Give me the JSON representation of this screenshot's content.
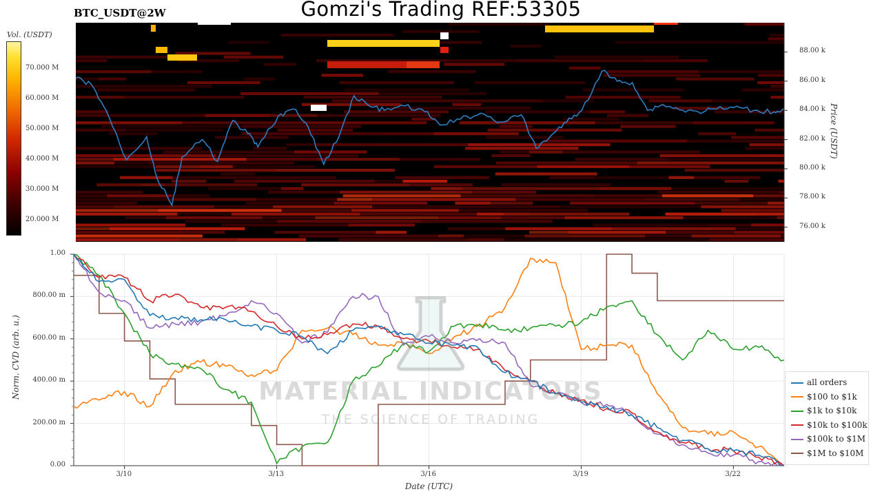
{
  "title": "Gomzi's Trading REF:53305",
  "pair_label": "BTC_USDT@2W",
  "watermark": {
    "name": "MATERIAL INDICATORS",
    "tagline": "THE SCIENCE OF TRADING"
  },
  "colors": {
    "price_line": "#2f7ec1",
    "background": "#000000",
    "all_orders": "#1f77b4",
    "s100_1k": "#ff7f0e",
    "s1k_10k": "#2ca02c",
    "s10k_100k": "#d62728",
    "s100k_1m": "#9467bd",
    "s1m_10m": "#8c564b"
  },
  "chart_data": [
    {
      "type": "heatmap",
      "title": "BTC_USDT@2W",
      "ylabel": "Price (USDT)",
      "yticks": [
        "76.00 k",
        "78.00 k",
        "80.00 k",
        "82.00 k",
        "84.00 k",
        "86.00 k",
        "88.00 k"
      ],
      "ylim": [
        75000,
        90000
      ],
      "colorbar_label": "Vol. (USDT)",
      "colorbar_ticks": [
        "20.000 M",
        "30.000 M",
        "40.000 M",
        "50.000 M",
        "60.000 M",
        "70.000 M"
      ],
      "price_series": {
        "name": "price",
        "x_days": [
          0,
          0.3,
          0.6,
          1.0,
          1.4,
          1.6,
          1.9,
          2.1,
          2.5,
          2.8,
          3.1,
          3.4,
          3.6,
          4.0,
          4.3,
          4.6,
          4.9,
          5.2,
          5.5,
          5.8,
          6.1,
          6.5,
          6.9,
          7.2,
          7.6,
          8.0,
          8.4,
          8.8,
          9.1,
          9.4,
          9.7,
          10.0,
          10.4,
          10.7,
          11.0,
          11.3,
          11.6,
          12.0,
          12.3,
          12.6,
          13.0,
          13.4,
          13.8,
          14.0
        ],
        "y": [
          86200,
          85800,
          84000,
          80600,
          82200,
          79400,
          77500,
          80800,
          82000,
          80500,
          83300,
          82400,
          81500,
          83600,
          84100,
          82800,
          80300,
          82200,
          85000,
          84300,
          84000,
          84300,
          83900,
          83000,
          83400,
          83800,
          83200,
          83700,
          81400,
          82300,
          83200,
          84000,
          86700,
          86000,
          85900,
          84000,
          84400,
          84000,
          83900,
          84100,
          84200,
          84000,
          83900,
          84100
        ]
      }
    },
    {
      "type": "line",
      "xlabel": "Date (UTC)",
      "ylabel": "Norm. CVD (arb. u.)",
      "ylim": [
        0,
        1
      ],
      "yticks": [
        "0.00",
        "200.00 m",
        "400.00 m",
        "600.00 m",
        "800.00 m",
        "1.00"
      ],
      "xticks": [
        "3/10",
        "3/13",
        "3/16",
        "3/19",
        "3/22"
      ],
      "x_days": [
        0,
        0.5,
        1.0,
        1.5,
        2.0,
        2.5,
        3.0,
        3.5,
        4.0,
        4.5,
        5.0,
        5.5,
        6.0,
        6.5,
        7.0,
        7.5,
        8.0,
        8.5,
        9.0,
        9.5,
        10.0,
        10.5,
        11.0,
        11.5,
        12.0,
        12.5,
        13.0,
        13.5,
        14.0
      ],
      "series": [
        {
          "name": "all orders",
          "values": [
            1.0,
            0.87,
            0.88,
            0.71,
            0.7,
            0.69,
            0.69,
            0.66,
            0.64,
            0.61,
            0.53,
            0.64,
            0.66,
            0.62,
            0.58,
            0.57,
            0.55,
            0.44,
            0.4,
            0.34,
            0.3,
            0.28,
            0.24,
            0.18,
            0.12,
            0.08,
            0.07,
            0.05,
            0.0
          ]
        },
        {
          "name": "$100 to $1k",
          "values": [
            0.28,
            0.31,
            0.35,
            0.28,
            0.45,
            0.49,
            0.47,
            0.43,
            0.45,
            0.64,
            0.65,
            0.62,
            0.57,
            0.58,
            0.53,
            0.61,
            0.66,
            0.75,
            0.98,
            0.96,
            0.55,
            0.57,
            0.57,
            0.34,
            0.18,
            0.15,
            0.16,
            0.09,
            0.0
          ]
        },
        {
          "name": "$1k to $10k",
          "values": [
            1.0,
            0.9,
            0.72,
            0.53,
            0.48,
            0.46,
            0.36,
            0.3,
            0.01,
            0.09,
            0.11,
            0.4,
            0.47,
            0.58,
            0.54,
            0.66,
            0.67,
            0.64,
            0.65,
            0.66,
            0.68,
            0.75,
            0.78,
            0.62,
            0.5,
            0.64,
            0.55,
            0.56,
            0.5
          ]
        },
        {
          "name": "$10k to $100k",
          "values": [
            1.0,
            0.89,
            0.89,
            0.78,
            0.81,
            0.75,
            0.75,
            0.73,
            0.66,
            0.6,
            0.62,
            0.67,
            0.66,
            0.6,
            0.59,
            0.56,
            0.55,
            0.45,
            0.4,
            0.34,
            0.31,
            0.27,
            0.25,
            0.16,
            0.11,
            0.08,
            0.07,
            0.04,
            0.0
          ]
        },
        {
          "name": "$100k to $1M",
          "values": [
            1.0,
            0.82,
            0.78,
            0.65,
            0.67,
            0.68,
            0.71,
            0.78,
            0.72,
            0.58,
            0.63,
            0.8,
            0.8,
            0.57,
            0.61,
            0.58,
            0.6,
            0.58,
            0.38,
            0.34,
            0.3,
            0.29,
            0.24,
            0.15,
            0.1,
            0.06,
            0.05,
            0.02,
            0.0
          ]
        },
        {
          "name": "$1M to $10M",
          "values": [
            0.9,
            0.72,
            0.59,
            0.41,
            0.29,
            0.29,
            0.29,
            0.19,
            0.1,
            0.0,
            0.0,
            0.0,
            0.29,
            0.29,
            0.29,
            0.29,
            0.29,
            0.4,
            0.5,
            0.5,
            0.5,
            1.0,
            0.91,
            0.78,
            0.78,
            0.78,
            0.78,
            0.78,
            0.78
          ]
        }
      ]
    }
  ]
}
